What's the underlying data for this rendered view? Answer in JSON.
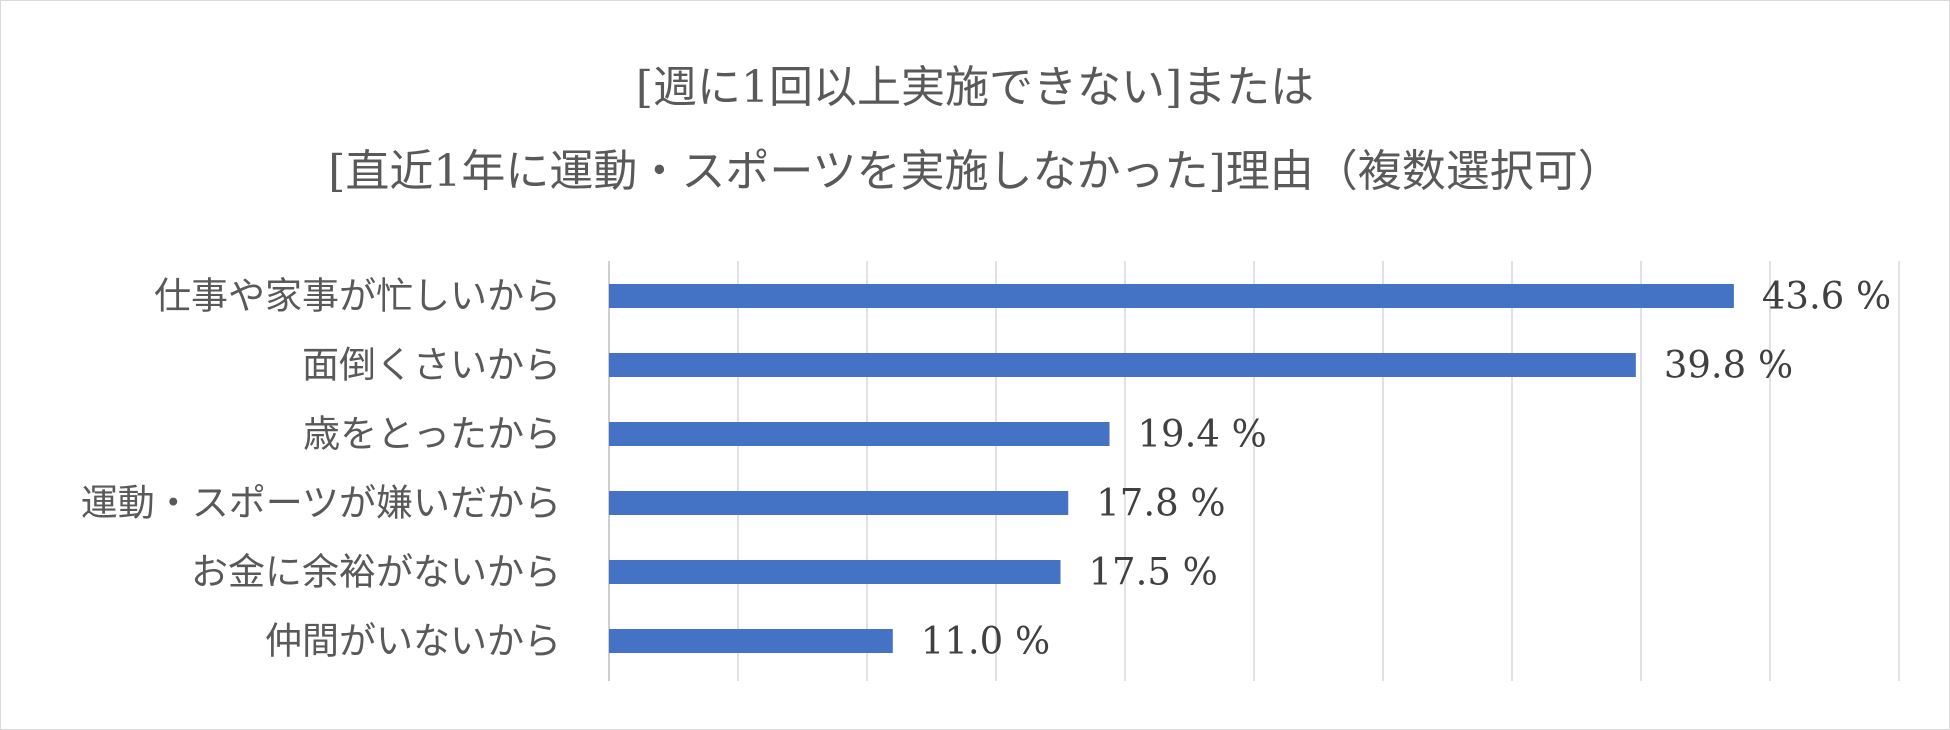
{
  "chart_data": {
    "type": "bar",
    "orientation": "horizontal",
    "title_lines": [
      "[週に1回以上実施できない]または",
      "[直近1年に運動・スポーツを実施しなかった]理由（複数選択可）"
    ],
    "categories": [
      "仕事や家事が忙しいから",
      "面倒くさいから",
      "歳をとったから",
      "運動・スポーツが嫌いだから",
      "お金に余裕がないから",
      "仲間がいないから"
    ],
    "values": [
      43.6,
      39.8,
      19.4,
      17.8,
      17.5,
      11.0
    ],
    "value_labels": [
      "43.6 %",
      "39.8 %",
      "19.4 %",
      "17.8 %",
      "17.5 %",
      "11.0 %"
    ],
    "xlim": [
      0,
      50
    ],
    "grid": true,
    "bar_color": "#4472c4",
    "gridline_color": "#d9d9d9"
  }
}
